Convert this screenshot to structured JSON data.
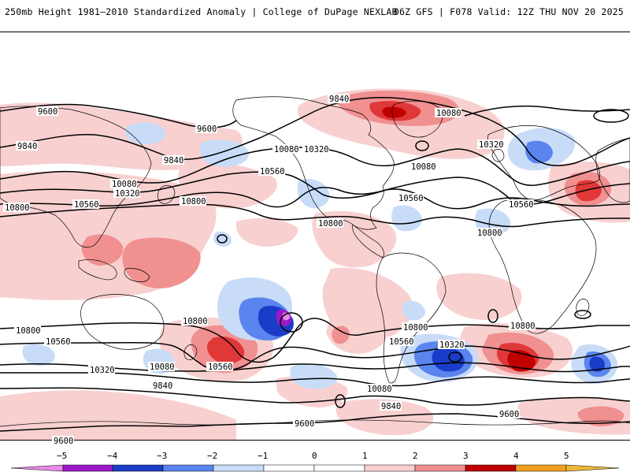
{
  "header": {
    "title": "250mb Height 1981–2010 Standardized Anomaly | College of DuPage NEXLAB",
    "run_info": "06Z GFS | F078 Valid: 12Z THU NOV 20 2025"
  },
  "colors": {
    "m5": "#e88ae8",
    "m4": "#9a18c8",
    "m3": "#1a3cc8",
    "m2": "#5a84ee",
    "m1": "#c8dcf8",
    "p1": "#f8d0d0",
    "p2": "#f09090",
    "p3": "#e03838",
    "p4": "#c00000",
    "p5": "#f0a020",
    "coast": "#000000",
    "contour": "#000000"
  },
  "contours": [
    {
      "id": "c9600_n",
      "label": "9600",
      "labels": [
        "9600",
        "9600"
      ]
    },
    {
      "id": "c9840_n",
      "label": "9840",
      "labels": [
        "9840",
        "9840",
        "9840"
      ]
    },
    {
      "id": "c10080_n",
      "label": "10080",
      "labels": [
        "10080",
        "10080",
        "10080",
        "10080"
      ]
    },
    {
      "id": "c10320_n",
      "label": "10320",
      "labels": [
        "10320",
        "10320",
        "10320"
      ]
    },
    {
      "id": "c10560_n",
      "label": "10560",
      "labels": [
        "10560",
        "10560",
        "10560",
        "10560"
      ]
    },
    {
      "id": "c10800_n",
      "label": "10800",
      "labels": [
        "10800",
        "10800",
        "10800",
        "10800"
      ]
    },
    {
      "id": "c10800_s",
      "label": "10800",
      "labels": [
        "10800",
        "10800",
        "10800",
        "10800"
      ]
    },
    {
      "id": "c10560_s",
      "label": "10560",
      "labels": [
        "10560",
        "10560",
        "10560"
      ]
    },
    {
      "id": "c10320_s",
      "label": "10320",
      "labels": [
        "10320",
        "10320"
      ]
    },
    {
      "id": "c10080_s",
      "label": "10080",
      "labels": [
        "10080",
        "10080"
      ]
    },
    {
      "id": "c9840_s",
      "label": "9840",
      "labels": [
        "9840",
        "9840"
      ]
    },
    {
      "id": "c9600_s",
      "label": "9600",
      "labels": [
        "9600",
        "9600",
        "9600"
      ]
    }
  ],
  "colorbar": {
    "ticks": [
      "−5",
      "−4",
      "−3",
      "−2",
      "−1",
      "0",
      "1",
      "2",
      "3",
      "4",
      "5"
    ],
    "colors": [
      "#e88ae8",
      "#9a18c8",
      "#1a3cc8",
      "#5a84ee",
      "#c8dcf8",
      "#ffffff",
      "#ffffff",
      "#f8d0d0",
      "#f09090",
      "#e03838",
      "#c00000",
      "#f0a020"
    ]
  }
}
